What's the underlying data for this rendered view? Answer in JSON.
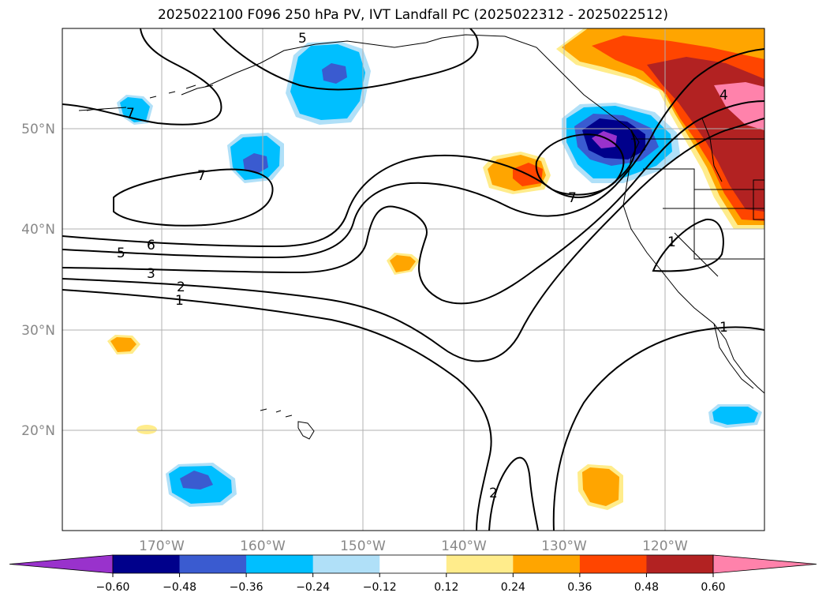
{
  "title": "2025022100 F096 250 hPa PV, IVT Landfall PC (2025022312 - 2025022512)",
  "map": {
    "lat_labels": [
      "50°N",
      "40°N",
      "30°N",
      "20°N"
    ],
    "lon_labels": [
      "170°W",
      "160°W",
      "150°W",
      "140°W",
      "130°W",
      "120°W"
    ],
    "contour_labels": [
      "7",
      "7",
      "7",
      "6",
      "5",
      "3",
      "2",
      "1",
      "4",
      "1",
      "2",
      "1",
      "5"
    ]
  },
  "colorbar": {
    "ticks": [
      "−0.60",
      "−0.48",
      "−0.36",
      "−0.24",
      "−0.12",
      "0.12",
      "0.24",
      "0.36",
      "0.48",
      "0.60"
    ],
    "colors": [
      "#9932cc",
      "#00008b",
      "#3a5bd0",
      "#00bfff",
      "#b0e0f8",
      "#ffffff",
      "#ffec8b",
      "#ffa500",
      "#ff4500",
      "#b22222",
      "#ff82ab"
    ]
  }
}
